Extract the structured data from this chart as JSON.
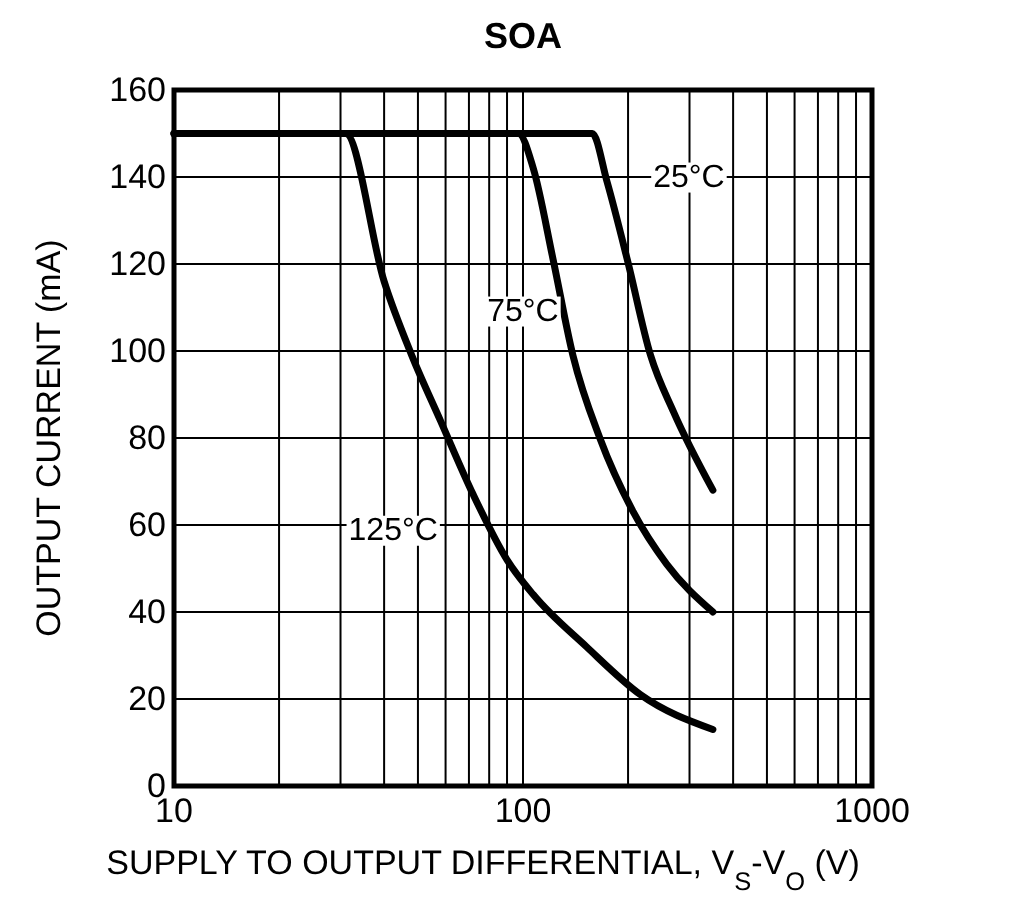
{
  "chart_data": {
    "type": "line",
    "title": "SOA",
    "xlabel": "SUPPLY TO OUTPUT DIFFERENTIAL, V$_{S}$-V$_{O}$ (V)",
    "ylabel": "OUTPUT CURRENT (mA)",
    "log": "x",
    "xlim": [
      10,
      1000
    ],
    "ylim": [
      0,
      160
    ],
    "xticks": [
      10,
      {
        "value": 20,
        "label": null
      },
      {
        "value": 30,
        "label": null
      },
      {
        "value": 40,
        "label": null
      },
      {
        "value": 50,
        "label": null
      },
      {
        "value": 60,
        "label": null
      },
      {
        "value": 70,
        "label": null
      },
      {
        "value": 80,
        "label": null
      },
      {
        "value": 90,
        "label": null
      },
      100,
      {
        "value": 200,
        "label": null
      },
      {
        "value": 300,
        "label": null
      },
      {
        "value": 400,
        "label": null
      },
      {
        "value": 500,
        "label": null
      },
      {
        "value": 600,
        "label": null
      },
      {
        "value": 700,
        "label": null
      },
      {
        "value": 800,
        "label": null
      },
      {
        "value": 900,
        "label": null
      },
      1000
    ],
    "yticks": [
      0,
      20,
      40,
      60,
      80,
      100,
      120,
      140,
      160
    ],
    "grid": true,
    "marker": "none",
    "line_style": "solid",
    "series": [
      {
        "name": "25°C",
        "color": "#000000",
        "x": [
          10,
          158,
          174,
          199,
          232,
          270,
          350
        ],
        "values": [
          150,
          150,
          139,
          121,
          99,
          86,
          68
        ]
      },
      {
        "name": "75°C",
        "color": "#000000",
        "x": [
          10,
          97,
          107,
          122,
          139,
          166,
          207,
          258,
          350
        ],
        "values": [
          150,
          150,
          142,
          121,
          99,
          80,
          63,
          51,
          40
        ]
      },
      {
        "name": "125°C",
        "color": "#000000",
        "x": [
          10,
          31,
          40,
          48,
          58,
          72,
          90,
          107,
          152,
          217,
          350
        ],
        "values": [
          150,
          150,
          116,
          99,
          84,
          67,
          52,
          44,
          32,
          21,
          13
        ]
      }
    ]
  }
}
